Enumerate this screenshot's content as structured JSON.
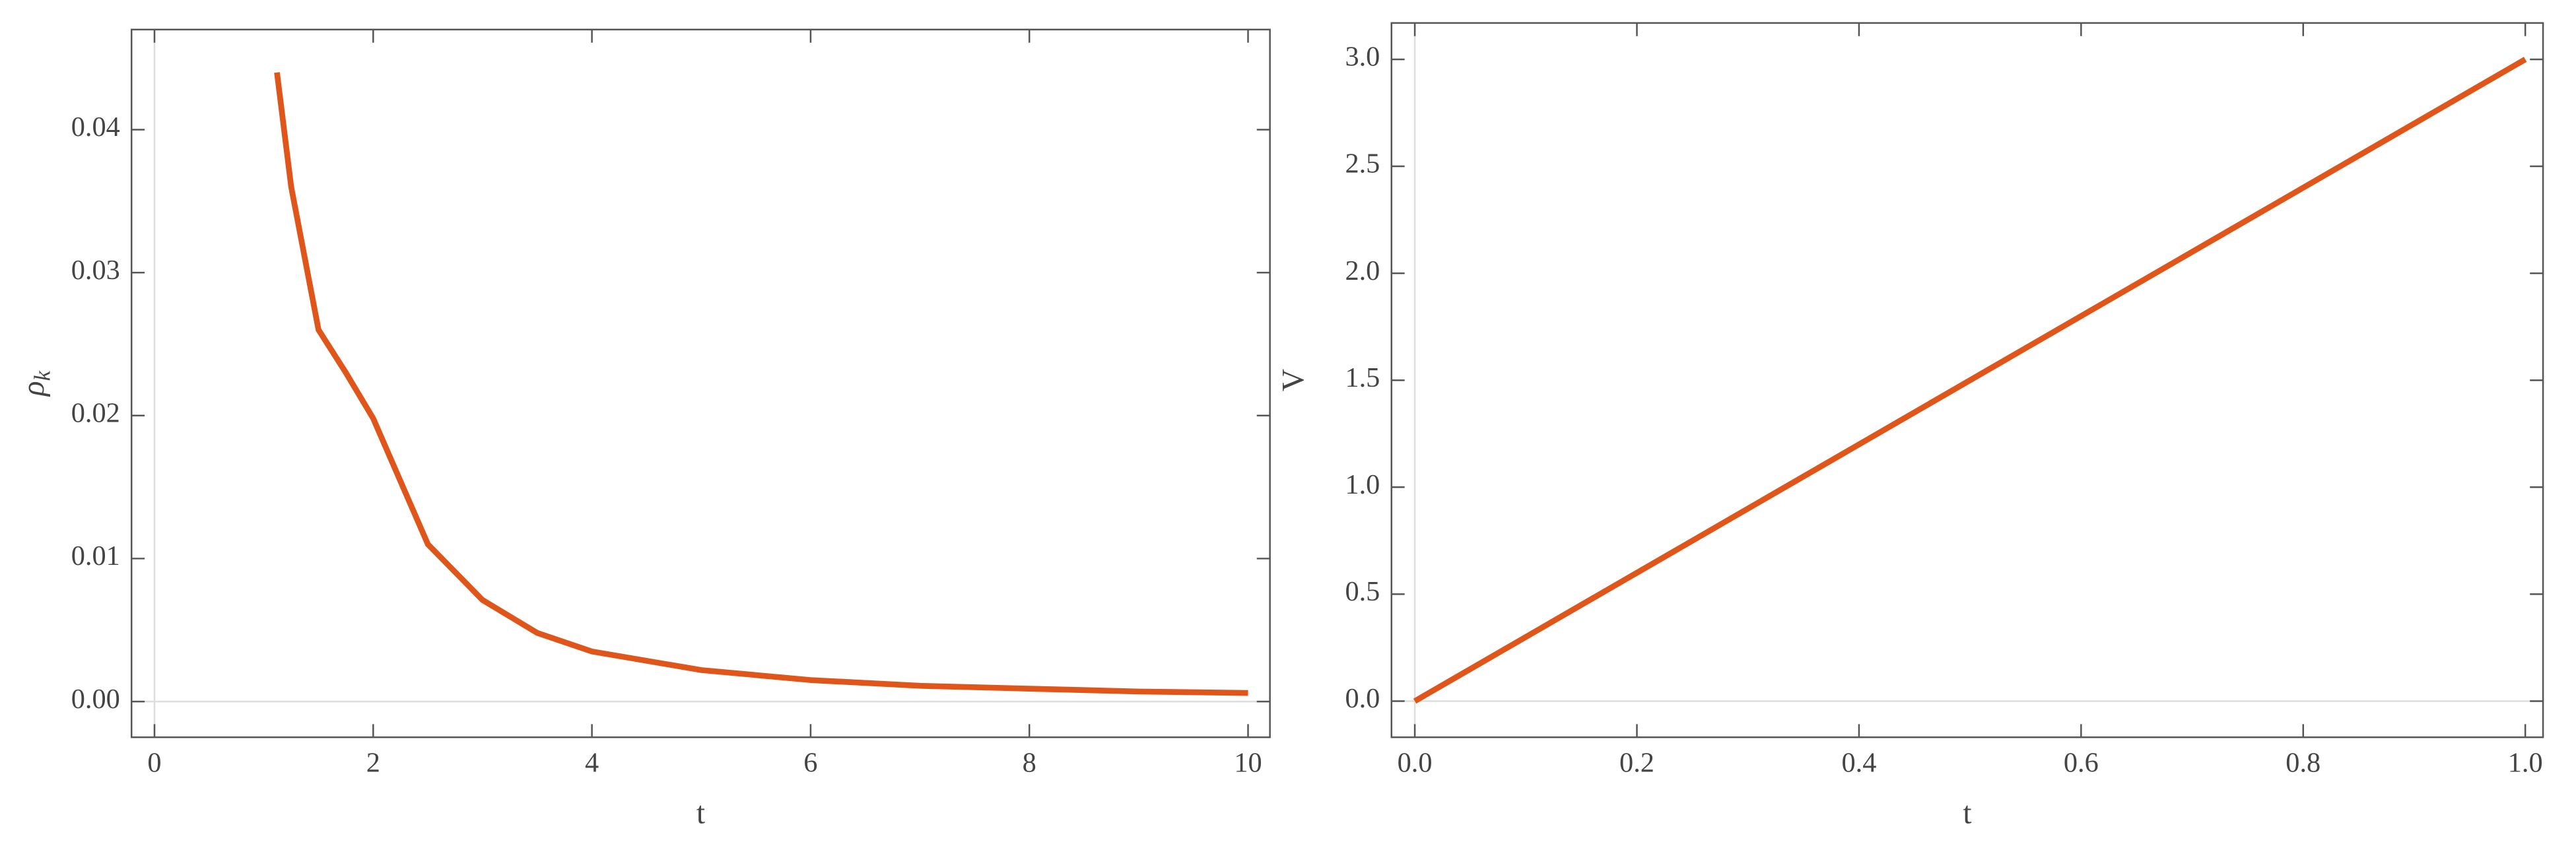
{
  "chart_data": [
    {
      "type": "line",
      "xlabel": "t",
      "ylabel": "ρ",
      "ylabel_subscript": "k",
      "x": [
        1.12,
        1.25,
        1.5,
        1.75,
        2,
        2.5,
        3,
        3.5,
        4,
        5,
        6,
        7,
        8,
        9,
        10
      ],
      "series": [
        {
          "color": "#e0561a",
          "values": [
            0.044,
            0.036,
            0.026,
            0.023,
            0.0198,
            0.011,
            0.0071,
            0.0048,
            0.0035,
            0.0022,
            0.0015,
            0.0011,
            0.0009,
            0.0007,
            0.0006
          ]
        }
      ],
      "xlim": [
        -0.21,
        10.2
      ],
      "ylim": [
        -0.0025,
        0.047
      ],
      "xticks": [
        0,
        2,
        4,
        6,
        8,
        10
      ],
      "yticks": [
        {
          "value": 0,
          "label": "0.00"
        },
        {
          "value": 0.01,
          "label": "0.01"
        },
        {
          "value": 0.02,
          "label": "0.02"
        },
        {
          "value": 0.03,
          "label": "0.03"
        },
        {
          "value": 0.04,
          "label": "0.04"
        }
      ]
    },
    {
      "type": "line",
      "xlabel": "t",
      "ylabel": "V",
      "x": [
        0,
        1
      ],
      "series": [
        {
          "color": "#e0561a",
          "values": [
            0,
            3
          ]
        }
      ],
      "xlim": [
        -0.021,
        1.016
      ],
      "ylim": [
        -0.169,
        3.17
      ],
      "xticks": [
        {
          "value": 0,
          "label": "0.0"
        },
        0.2,
        0.4,
        0.6,
        0.8,
        {
          "value": 1,
          "label": "1.0"
        }
      ],
      "yticks": [
        {
          "value": 0,
          "label": "0.0"
        },
        0.5,
        {
          "value": 1,
          "label": "1.0"
        },
        1.5,
        {
          "value": 2,
          "label": "2.0"
        },
        2.5,
        {
          "value": 3,
          "label": "3.0"
        }
      ]
    }
  ]
}
